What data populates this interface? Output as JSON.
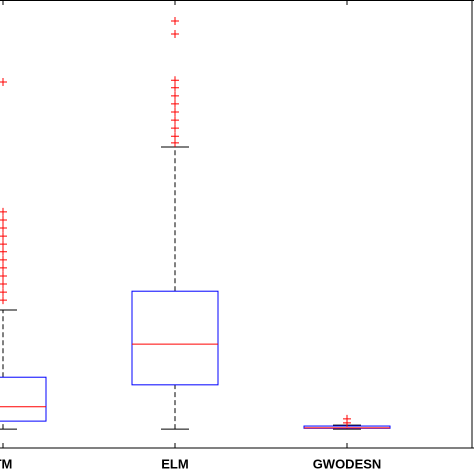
{
  "chart_data": {
    "type": "box",
    "categories": [
      "TM",
      "ELM",
      "GWODESN"
    ],
    "ylim": [
      0,
      100
    ],
    "box_color": "#0000ff",
    "median_color": "#ff0000",
    "outlier_color": "#ff0000",
    "whisker_color": "#000000",
    "boxes": [
      {
        "whisker_low": 4.2,
        "q1": 6.0,
        "median": 9.2,
        "q3": 15.8,
        "whisker_high": 30.8,
        "outliers": [
          81.7,
          52.7,
          50.9,
          49.1,
          47.3,
          45.5,
          43.8,
          42.0,
          40.2,
          38.4,
          36.6,
          34.8,
          33.0
        ]
      },
      {
        "whisker_low": 4.2,
        "q1": 14.1,
        "median": 23.2,
        "q3": 35.0,
        "whisker_high": 67.2,
        "outliers": [
          95.3,
          92.4,
          82.1,
          80.4,
          78.6,
          76.8,
          75.0,
          73.2,
          71.4,
          69.6,
          68.1
        ]
      },
      {
        "whisker_low": 4.2,
        "q1": 4.4,
        "median": 4.5,
        "q3": 4.9,
        "whisker_high": 5.1,
        "outliers": [
          6.5,
          5.6
        ]
      }
    ]
  }
}
